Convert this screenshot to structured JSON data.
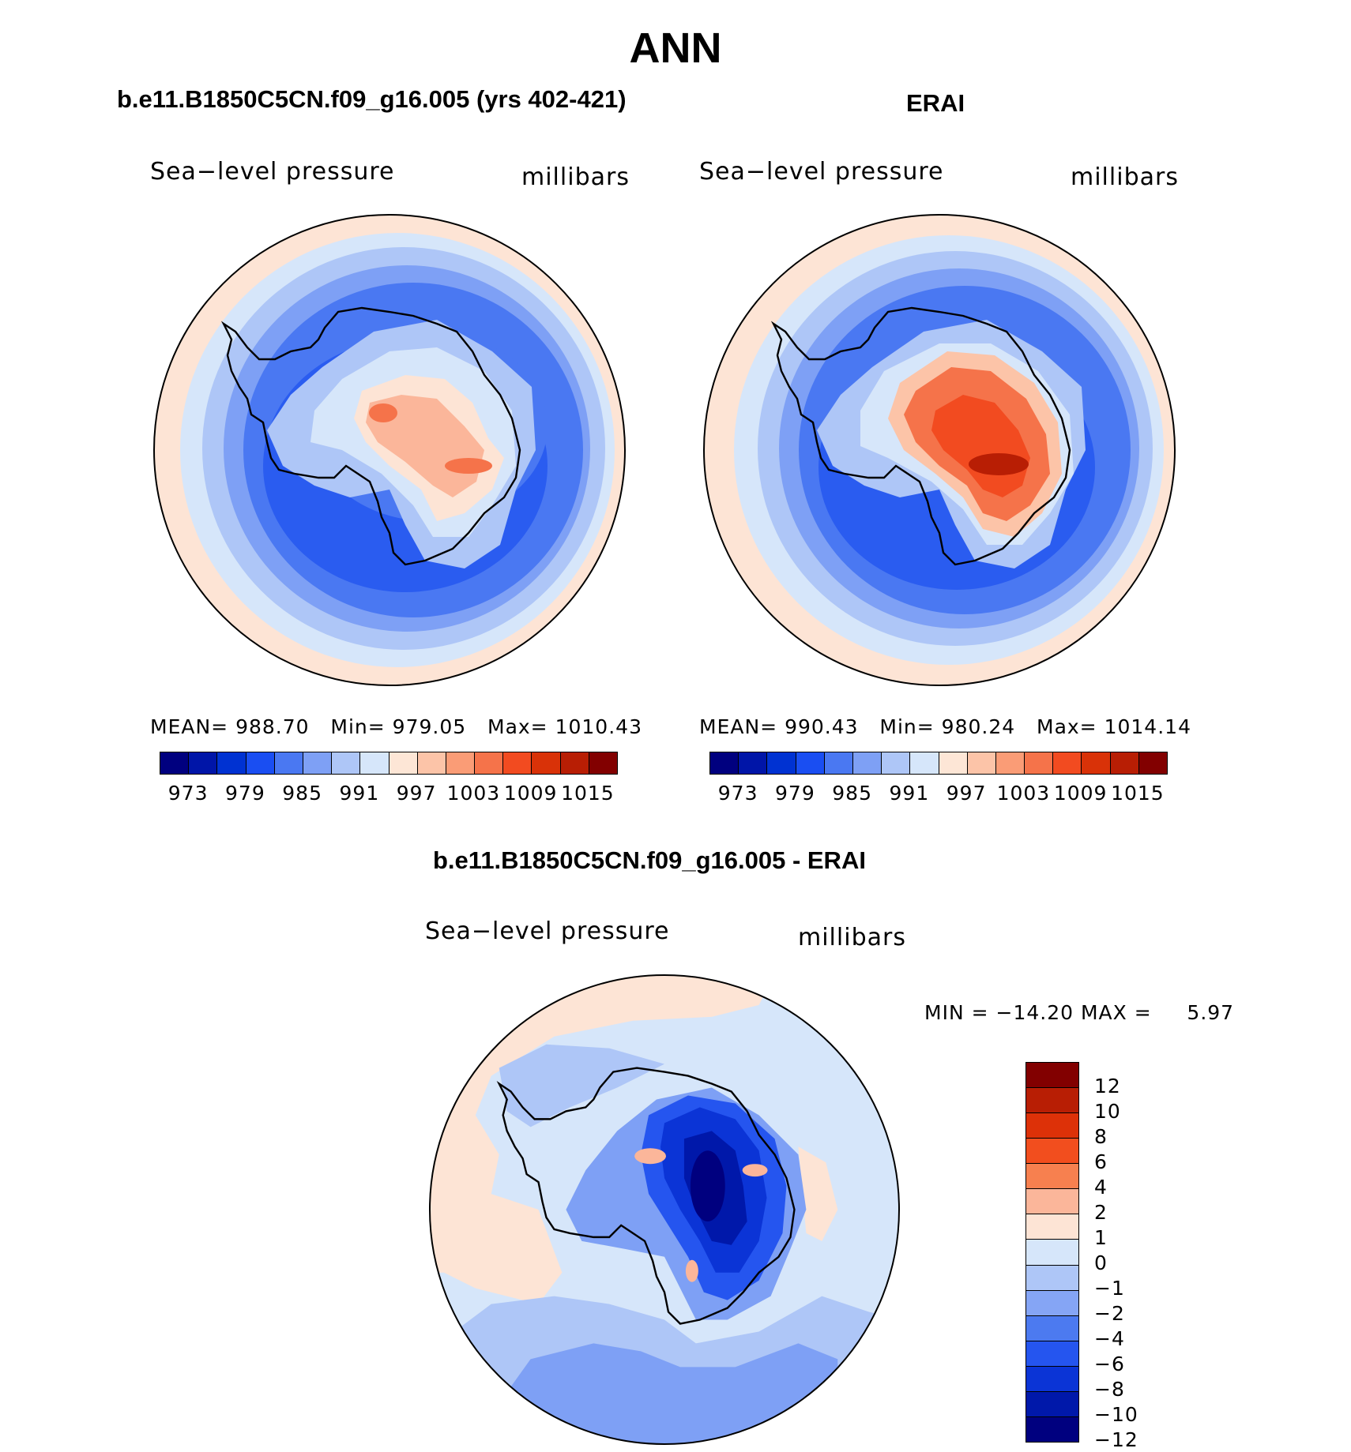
{
  "page_title": "ANN",
  "panels": {
    "model": {
      "title": "b.e11.B1850C5CN.f09_g16.005 (yrs 402-421)",
      "variable": "Sea−level pressure",
      "units": "millibars",
      "stats": {
        "mean_label": "MEAN=",
        "mean": "988.70",
        "min_label": "Min=",
        "min": "979.05",
        "max_label": "Max=",
        "max": "1010.43"
      }
    },
    "obs": {
      "title": "ERAI",
      "variable": "Sea−level pressure",
      "units": "millibars",
      "stats": {
        "mean_label": "MEAN=",
        "mean": "990.43",
        "min_label": "Min=",
        "min": "980.24",
        "max_label": "Max=",
        "max": "1014.14"
      }
    },
    "diff": {
      "title": "b.e11.B1850C5CN.f09_g16.005 - ERAI",
      "variable": "Sea−level pressure",
      "units": "millibars",
      "min_label": "MIN =",
      "min": "−14.20",
      "max_label": "MAX =",
      "max": "5.97"
    }
  },
  "colorbars": {
    "abs": {
      "colors": [
        "#00007f",
        "#0015a8",
        "#0032d2",
        "#1a4ef2",
        "#4a78f2",
        "#7ea0f5",
        "#aec6f7",
        "#d6e6fa",
        "#fde6d6",
        "#fcc4a8",
        "#fa9c76",
        "#f5734a",
        "#f24b20",
        "#d93208",
        "#b81e04",
        "#820000"
      ],
      "labels": [
        "973",
        "979",
        "985",
        "991",
        "997",
        "1003",
        "1009",
        "1015"
      ]
    },
    "diff": {
      "colors": [
        "#820000",
        "#b81e04",
        "#dd3108",
        "#f24e1e",
        "#f7804f",
        "#fbb69a",
        "#fde4d5",
        "#d6e6fa",
        "#aec6f7",
        "#85a5f5",
        "#4c7af0",
        "#2555ef",
        "#0b34d6",
        "#0018aa",
        "#00007f"
      ],
      "labels": [
        "12",
        "10",
        "8",
        "6",
        "4",
        "2",
        "1",
        "0",
        "−1",
        "−2",
        "−4",
        "−6",
        "−8",
        "−10",
        "−12"
      ]
    }
  },
  "map_colors": {
    "outer_warm": "#fde4d5",
    "outer_warm2": "#fcc4a8",
    "ring1": "#d6e6fa",
    "ring2": "#aec6f7",
    "ring3": "#7ea0f5",
    "ring4": "#4a78f2",
    "ring5": "#2a5cf0",
    "land_warm1": "#fbb69a",
    "land_warm2": "#f5734a",
    "land_warm3": "#f24b20",
    "land_warm4": "#b81e04",
    "diff_blue1": "#2555ef",
    "diff_blue2": "#0b34d6",
    "diff_blue3": "#0018aa",
    "diff_blue4": "#00007f"
  }
}
